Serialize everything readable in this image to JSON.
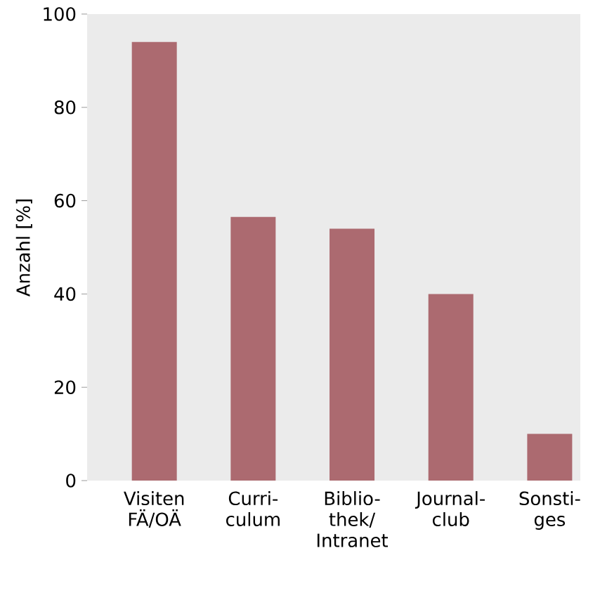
{
  "chart_data": {
    "type": "bar",
    "ylabel": "Anzahl [%]",
    "categories": [
      "Visiten FÄ/OÄ",
      "Curri- culum",
      "Biblio- thek/ Intranet",
      "Journal- club",
      "Sonsti- ges"
    ],
    "values": [
      94,
      56.5,
      54,
      40,
      10
    ],
    "color": "#ac6a70",
    "ylim": [
      0,
      100
    ],
    "yticks": [
      0,
      20,
      40,
      60,
      80,
      100
    ],
    "grid": false
  }
}
